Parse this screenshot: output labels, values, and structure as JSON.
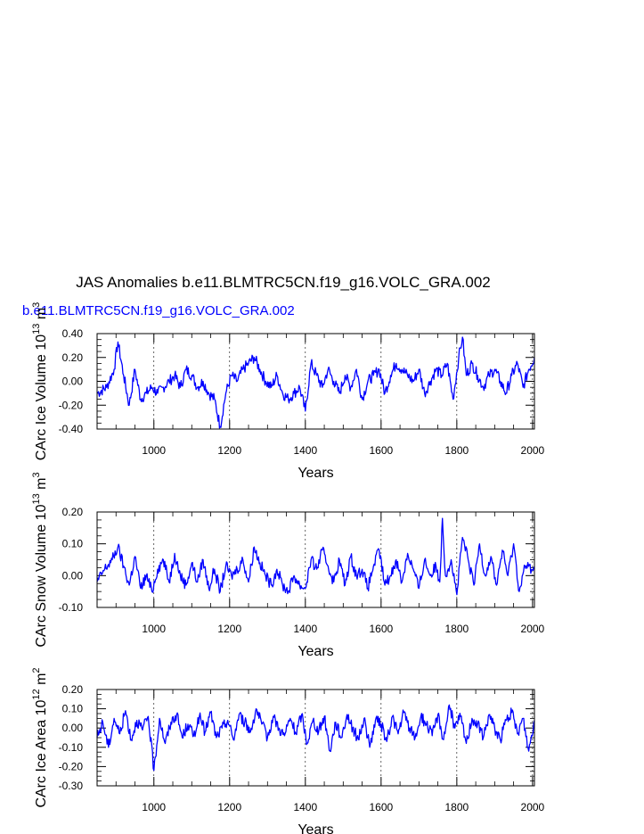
{
  "figure": {
    "title": "JAS Anomalies b.e11.BLMTRC5CN.f19_g16.VOLC_GRA.002",
    "run_label": "b.e11.BLMTRC5CN.f19_g16.VOLC_GRA.002",
    "line_color": "#0000ff",
    "grid_color": "#000000"
  },
  "chart_data": [
    {
      "type": "line",
      "name": "ice-volume",
      "xlabel": "Years",
      "ylabel": "CArc Ice Volume 10",
      "ylabel_exp": "13",
      "ylabel_unit": "m",
      "ylabel_unit_exp": "3",
      "xlim": [
        850,
        2005
      ],
      "ylim": [
        -0.4,
        0.4
      ],
      "x_ticks": [
        1000,
        1200,
        1400,
        1600,
        1800,
        2000
      ],
      "x_tick_labels": [
        "1000",
        "1200",
        "1400",
        "1600",
        "1800",
        "2000"
      ],
      "y_ticks": [
        -0.4,
        -0.2,
        0.0,
        0.2,
        0.4
      ],
      "y_tick_labels": [
        "-0.40",
        "-0.20",
        "0.00",
        "0.20",
        "0.40"
      ],
      "grid": "vertical dashed at major x ticks",
      "series": [
        {
          "x": [
            850,
            875,
            895,
            905,
            920,
            935,
            950,
            965,
            980,
            995,
            1010,
            1025,
            1040,
            1055,
            1070,
            1085,
            1100,
            1115,
            1130,
            1145,
            1160,
            1175,
            1190,
            1205,
            1220,
            1235,
            1250,
            1265,
            1280,
            1295,
            1310,
            1325,
            1340,
            1355,
            1370,
            1385,
            1400,
            1415,
            1430,
            1445,
            1460,
            1475,
            1490,
            1505,
            1520,
            1535,
            1550,
            1565,
            1580,
            1595,
            1610,
            1625,
            1640,
            1655,
            1670,
            1685,
            1700,
            1715,
            1730,
            1745,
            1760,
            1775,
            1790,
            1805,
            1815,
            1825,
            1840,
            1855,
            1870,
            1885,
            1900,
            1915,
            1930,
            1945,
            1960,
            1975,
            1990,
            2005
          ],
          "y": [
            -0.1,
            -0.05,
            0.1,
            0.33,
            0.05,
            -0.2,
            0.1,
            -0.15,
            -0.1,
            -0.05,
            -0.1,
            -0.05,
            0.0,
            0.05,
            -0.05,
            0.1,
            0.05,
            -0.05,
            0.0,
            -0.1,
            -0.15,
            -0.38,
            -0.1,
            0.05,
            0.0,
            0.1,
            0.15,
            0.2,
            0.1,
            0.0,
            -0.05,
            0.05,
            -0.1,
            -0.15,
            -0.1,
            -0.05,
            -0.25,
            0.15,
            0.05,
            -0.05,
            0.1,
            0.0,
            -0.1,
            0.05,
            -0.05,
            0.1,
            -0.15,
            0.0,
            0.05,
            0.1,
            -0.1,
            0.05,
            0.15,
            0.1,
            0.05,
            0.0,
            0.1,
            -0.1,
            0.0,
            0.1,
            0.05,
            0.15,
            -0.15,
            0.2,
            0.37,
            0.05,
            0.15,
            0.05,
            -0.05,
            0.05,
            0.1,
            0.0,
            -0.1,
            0.05,
            0.15,
            -0.05,
            0.1,
            0.2
          ]
        }
      ]
    },
    {
      "type": "line",
      "name": "snow-volume",
      "xlabel": "Years",
      "ylabel": "CArc Snow Volume 10",
      "ylabel_exp": "13",
      "ylabel_unit": "m",
      "ylabel_unit_exp": "3",
      "xlim": [
        850,
        2005
      ],
      "ylim": [
        -0.1,
        0.2
      ],
      "x_ticks": [
        1000,
        1200,
        1400,
        1600,
        1800,
        2000
      ],
      "x_tick_labels": [
        "1000",
        "1200",
        "1400",
        "1600",
        "1800",
        "2000"
      ],
      "y_ticks": [
        -0.1,
        0.0,
        0.1,
        0.2
      ],
      "y_tick_labels": [
        "-0.10",
        "0.00",
        "0.10",
        "0.20"
      ],
      "grid": "vertical dashed at major x ticks",
      "series": [
        {
          "x": [
            850,
            870,
            890,
            905,
            920,
            935,
            950,
            965,
            980,
            995,
            1010,
            1025,
            1040,
            1055,
            1070,
            1085,
            1100,
            1115,
            1130,
            1145,
            1160,
            1175,
            1190,
            1205,
            1220,
            1235,
            1250,
            1265,
            1280,
            1295,
            1310,
            1325,
            1340,
            1355,
            1370,
            1385,
            1400,
            1415,
            1430,
            1445,
            1460,
            1475,
            1490,
            1505,
            1520,
            1535,
            1550,
            1565,
            1580,
            1595,
            1610,
            1625,
            1640,
            1655,
            1670,
            1685,
            1700,
            1715,
            1730,
            1745,
            1755,
            1762,
            1770,
            1785,
            1800,
            1815,
            1830,
            1845,
            1860,
            1875,
            1890,
            1905,
            1920,
            1935,
            1950,
            1965,
            1980,
            2005
          ],
          "y": [
            -0.02,
            0.02,
            0.05,
            0.09,
            0.03,
            -0.03,
            0.06,
            -0.04,
            0.0,
            -0.05,
            0.02,
            0.05,
            -0.02,
            0.07,
            0.0,
            -0.03,
            0.04,
            -0.02,
            0.05,
            -0.04,
            0.02,
            -0.05,
            0.03,
            0.0,
            0.02,
            0.05,
            -0.02,
            0.09,
            0.04,
            0.0,
            -0.03,
            0.02,
            -0.03,
            -0.05,
            0.0,
            -0.03,
            -0.04,
            0.05,
            0.02,
            0.08,
            0.03,
            -0.02,
            0.05,
            -0.03,
            0.06,
            0.0,
            0.02,
            -0.04,
            0.03,
            0.08,
            -0.03,
            0.0,
            0.05,
            -0.02,
            0.07,
            0.02,
            -0.04,
            0.05,
            0.0,
            0.03,
            -0.02,
            0.18,
            0.0,
            0.05,
            -0.06,
            0.12,
            0.05,
            -0.03,
            0.1,
            0.0,
            0.06,
            -0.03,
            0.08,
            0.0,
            0.1,
            -0.05,
            0.03,
            0.02
          ]
        }
      ]
    },
    {
      "type": "line",
      "name": "ice-area",
      "xlabel": "Years",
      "ylabel": "CArc Ice Area 10",
      "ylabel_exp": "12",
      "ylabel_unit": "m",
      "ylabel_unit_exp": "2",
      "xlim": [
        850,
        2005
      ],
      "ylim": [
        -0.3,
        0.2
      ],
      "x_ticks": [
        1000,
        1200,
        1400,
        1600,
        1800,
        2000
      ],
      "x_tick_labels": [
        "1000",
        "1200",
        "1400",
        "1600",
        "1800",
        "2000"
      ],
      "y_ticks": [
        -0.3,
        -0.2,
        -0.1,
        0.0,
        0.1,
        0.2
      ],
      "y_tick_labels": [
        "-0.30",
        "-0.20",
        "-0.10",
        "0.00",
        "0.10",
        "0.20"
      ],
      "grid": "vertical dashed at major x ticks",
      "series": [
        {
          "x": [
            850,
            865,
            880,
            895,
            910,
            925,
            940,
            955,
            970,
            985,
            1000,
            1015,
            1030,
            1045,
            1060,
            1075,
            1090,
            1105,
            1120,
            1135,
            1150,
            1165,
            1180,
            1195,
            1210,
            1225,
            1240,
            1255,
            1270,
            1285,
            1300,
            1315,
            1330,
            1345,
            1360,
            1375,
            1390,
            1405,
            1420,
            1435,
            1450,
            1465,
            1480,
            1495,
            1510,
            1525,
            1540,
            1555,
            1570,
            1585,
            1600,
            1615,
            1630,
            1645,
            1660,
            1675,
            1690,
            1705,
            1720,
            1735,
            1750,
            1765,
            1780,
            1795,
            1810,
            1825,
            1840,
            1855,
            1870,
            1885,
            1900,
            1915,
            1930,
            1945,
            1960,
            1975,
            1990,
            2005
          ],
          "y": [
            -0.05,
            0.03,
            -0.1,
            0.05,
            -0.03,
            0.09,
            -0.06,
            0.04,
            -0.01,
            0.06,
            -0.22,
            0.05,
            -0.08,
            0.03,
            0.07,
            -0.05,
            0.02,
            -0.04,
            0.06,
            -0.02,
            0.08,
            -0.05,
            0.0,
            0.04,
            -0.06,
            0.07,
            0.03,
            -0.02,
            0.1,
            0.02,
            -0.05,
            0.06,
            0.0,
            -0.04,
            0.05,
            -0.03,
            0.07,
            -0.08,
            0.04,
            -0.02,
            0.06,
            -0.12,
            0.03,
            -0.05,
            0.07,
            0.0,
            -0.06,
            0.05,
            -0.1,
            0.04,
            0.02,
            -0.07,
            0.06,
            -0.03,
            0.08,
            0.0,
            -0.05,
            0.06,
            0.02,
            -0.04,
            0.07,
            -0.06,
            0.12,
            0.0,
            0.06,
            -0.08,
            0.05,
            0.02,
            -0.05,
            0.07,
            0.0,
            -0.06,
            0.04,
            0.08,
            -0.03,
            0.05,
            -0.12,
            0.04
          ]
        }
      ]
    }
  ]
}
